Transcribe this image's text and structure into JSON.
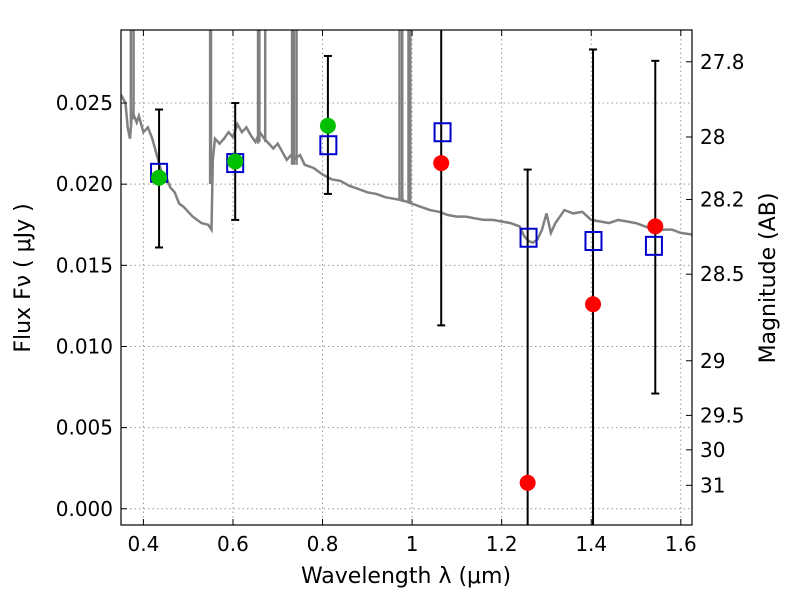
{
  "chart_data": {
    "type": "scatter",
    "xlabel": "Wavelength  λ (μm)",
    "ylabel": "Flux  Fν  ( μJy )",
    "y2label": "Magnitude (AB)",
    "xlim": [
      0.35,
      1.625
    ],
    "ylim": [
      -0.001,
      0.0295
    ],
    "grid": true,
    "x_ticks": [
      {
        "value": 0.4,
        "label": "0.4"
      },
      {
        "value": 0.6,
        "label": "0.6"
      },
      {
        "value": 0.8,
        "label": "0.8"
      },
      {
        "value": 1.0,
        "label": "1"
      },
      {
        "value": 1.2,
        "label": "1.2"
      },
      {
        "value": 1.4,
        "label": "1.4"
      },
      {
        "value": 1.6,
        "label": "1.6"
      }
    ],
    "y_ticks": [
      {
        "value": 0.0,
        "label": "0.000"
      },
      {
        "value": 0.005,
        "label": "0.005"
      },
      {
        "value": 0.01,
        "label": "0.010"
      },
      {
        "value": 0.015,
        "label": "0.015"
      },
      {
        "value": 0.02,
        "label": "0.020"
      },
      {
        "value": 0.025,
        "label": "0.025"
      }
    ],
    "y2_ticks": [
      {
        "value": 27.8,
        "label": "27.8"
      },
      {
        "value": 28.0,
        "label": "28"
      },
      {
        "value": 28.2,
        "label": "28.2"
      },
      {
        "value": 28.5,
        "label": "28.5"
      },
      {
        "value": 29.0,
        "label": "29"
      },
      {
        "value": 29.5,
        "label": "29.5"
      },
      {
        "value": 30.0,
        "label": "30"
      },
      {
        "value": 31.0,
        "label": "31"
      }
    ],
    "colors": {
      "model": "#808080",
      "green": "#00c000",
      "red": "#ff0000",
      "square": "#0000cc",
      "errorbar": "#000000",
      "grid": "#999999"
    },
    "model_spectrum": [
      [
        0.35,
        0.0255
      ],
      [
        0.36,
        0.025
      ],
      [
        0.365,
        0.0235
      ],
      [
        0.37,
        0.0228
      ],
      [
        0.375,
        0.0245
      ],
      [
        0.385,
        0.0238
      ],
      [
        0.39,
        0.0242
      ],
      [
        0.4,
        0.0232
      ],
      [
        0.41,
        0.0235
      ],
      [
        0.42,
        0.0228
      ],
      [
        0.43,
        0.0218
      ],
      [
        0.44,
        0.0208
      ],
      [
        0.45,
        0.0205
      ],
      [
        0.46,
        0.0198
      ],
      [
        0.47,
        0.0195
      ],
      [
        0.48,
        0.0188
      ],
      [
        0.49,
        0.0186
      ],
      [
        0.5,
        0.0183
      ],
      [
        0.51,
        0.018
      ],
      [
        0.52,
        0.0178
      ],
      [
        0.53,
        0.0176
      ],
      [
        0.545,
        0.0175
      ],
      [
        0.552,
        0.0172
      ],
      [
        0.555,
        0.0215
      ],
      [
        0.56,
        0.0228
      ],
      [
        0.57,
        0.0225
      ],
      [
        0.58,
        0.0228
      ],
      [
        0.59,
        0.0232
      ],
      [
        0.6,
        0.0229
      ],
      [
        0.61,
        0.0237
      ],
      [
        0.62,
        0.0232
      ],
      [
        0.63,
        0.0235
      ],
      [
        0.64,
        0.023
      ],
      [
        0.65,
        0.0226
      ],
      [
        0.66,
        0.0232
      ],
      [
        0.67,
        0.0228
      ],
      [
        0.68,
        0.0225
      ],
      [
        0.69,
        0.0222
      ],
      [
        0.7,
        0.0225
      ],
      [
        0.71,
        0.022
      ],
      [
        0.72,
        0.0215
      ],
      [
        0.73,
        0.0218
      ],
      [
        0.74,
        0.0216
      ],
      [
        0.75,
        0.0218
      ],
      [
        0.76,
        0.0212
      ],
      [
        0.78,
        0.021
      ],
      [
        0.8,
        0.0206
      ],
      [
        0.82,
        0.0203
      ],
      [
        0.84,
        0.0202
      ],
      [
        0.86,
        0.0199
      ],
      [
        0.88,
        0.0197
      ],
      [
        0.9,
        0.0195
      ],
      [
        0.92,
        0.0194
      ],
      [
        0.94,
        0.0192
      ],
      [
        0.96,
        0.0191
      ],
      [
        0.98,
        0.019
      ],
      [
        1.0,
        0.0188
      ],
      [
        1.02,
        0.0186
      ],
      [
        1.04,
        0.0184
      ],
      [
        1.06,
        0.0183
      ],
      [
        1.08,
        0.0181
      ],
      [
        1.1,
        0.018
      ],
      [
        1.12,
        0.018
      ],
      [
        1.14,
        0.0179
      ],
      [
        1.16,
        0.0178
      ],
      [
        1.18,
        0.0178
      ],
      [
        1.2,
        0.0177
      ],
      [
        1.22,
        0.0176
      ],
      [
        1.24,
        0.0174
      ],
      [
        1.25,
        0.0168
      ],
      [
        1.26,
        0.0165
      ],
      [
        1.27,
        0.0164
      ],
      [
        1.28,
        0.0166
      ],
      [
        1.29,
        0.0172
      ],
      [
        1.3,
        0.0182
      ],
      [
        1.31,
        0.017
      ],
      [
        1.32,
        0.0176
      ],
      [
        1.34,
        0.0184
      ],
      [
        1.36,
        0.0182
      ],
      [
        1.38,
        0.0183
      ],
      [
        1.4,
        0.0178
      ],
      [
        1.42,
        0.0177
      ],
      [
        1.44,
        0.0176
      ],
      [
        1.46,
        0.0178
      ],
      [
        1.48,
        0.0177
      ],
      [
        1.5,
        0.0176
      ],
      [
        1.52,
        0.0174
      ],
      [
        1.54,
        0.0172
      ],
      [
        1.56,
        0.0172
      ],
      [
        1.58,
        0.0172
      ],
      [
        1.6,
        0.017
      ],
      [
        1.625,
        0.0169
      ]
    ],
    "emission_lines": [
      {
        "x": 0.372,
        "base": 0.0237
      },
      {
        "x": 0.378,
        "base": 0.024
      },
      {
        "x": 0.549,
        "base": 0.02
      },
      {
        "x": 0.551,
        "base": 0.0205
      },
      {
        "x": 0.656,
        "base": 0.0225
      },
      {
        "x": 0.659,
        "base": 0.0226
      },
      {
        "x": 0.672,
        "base": 0.0226
      },
      {
        "x": 0.732,
        "base": 0.0212
      },
      {
        "x": 0.736,
        "base": 0.0212
      },
      {
        "x": 0.742,
        "base": 0.0212
      },
      {
        "x": 0.972,
        "base": 0.019
      },
      {
        "x": 0.978,
        "base": 0.0189
      },
      {
        "x": 0.992,
        "base": 0.0189
      },
      {
        "x": 0.996,
        "base": 0.0189
      }
    ],
    "green_points": [
      {
        "x": 0.435,
        "y": 0.0204
      },
      {
        "x": 0.605,
        "y": 0.0214
      },
      {
        "x": 0.812,
        "y": 0.0236
      }
    ],
    "red_points": [
      {
        "x": 1.065,
        "y": 0.0213
      },
      {
        "x": 1.258,
        "y": 0.0016
      },
      {
        "x": 1.404,
        "y": 0.0126
      },
      {
        "x": 1.543,
        "y": 0.0174
      }
    ],
    "model_squares": [
      {
        "x": 0.435,
        "y": 0.0207
      },
      {
        "x": 0.605,
        "y": 0.0213
      },
      {
        "x": 0.813,
        "y": 0.0224
      },
      {
        "x": 1.068,
        "y": 0.0232
      },
      {
        "x": 1.26,
        "y": 0.0167
      },
      {
        "x": 1.405,
        "y": 0.0165
      },
      {
        "x": 1.54,
        "y": 0.0162
      }
    ],
    "error_bars": [
      {
        "x": 0.435,
        "low": 0.0161,
        "high": 0.0246
      },
      {
        "x": 0.605,
        "low": 0.0178,
        "high": 0.025
      },
      {
        "x": 0.812,
        "low": 0.0194,
        "high": 0.0279
      },
      {
        "x": 1.065,
        "low": 0.0113,
        "high": 0.03
      },
      {
        "x": 1.258,
        "low": -0.001,
        "high": 0.0209
      },
      {
        "x": 1.404,
        "low": -0.001,
        "high": 0.0283
      },
      {
        "x": 1.543,
        "low": 0.0071,
        "high": 0.0276
      }
    ]
  }
}
